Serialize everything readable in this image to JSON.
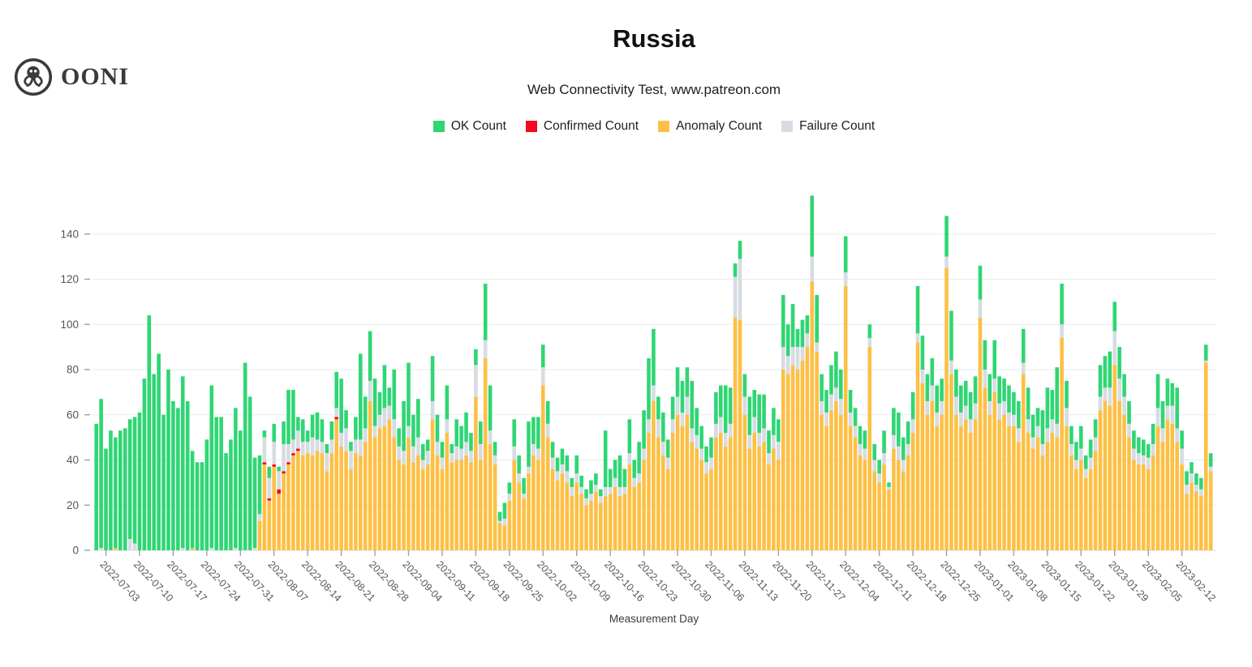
{
  "brand": {
    "logo_text": "OONI"
  },
  "title": "Russia",
  "subtitle": "Web Connectivity Test, www.patreon.com",
  "legend": {
    "items": [
      {
        "label": "OK Count",
        "color": "#2fd673"
      },
      {
        "label": "Confirmed Count",
        "color": "#f30b20"
      },
      {
        "label": "Anomaly Count",
        "color": "#fdc045"
      },
      {
        "label": "Failure Count",
        "color": "#d6dce2"
      }
    ]
  },
  "chart_data": {
    "type": "bar",
    "stacked": true,
    "title": "Russia",
    "subtitle": "Web Connectivity Test, www.patreon.com",
    "xlabel": "Measurement Day",
    "ylabel": "",
    "start_date": "2022-07-01",
    "end_date": "2023-02-18",
    "ylim": [
      0,
      160
    ],
    "y_ticks": [
      0,
      20,
      40,
      60,
      80,
      100,
      120,
      140
    ],
    "grid": true,
    "legend_position": "top",
    "x_tick_start_index": 2,
    "x_tick_step": 7,
    "x_tick_labels": [
      "2022-07-03",
      "2022-07-10",
      "2022-07-17",
      "2022-07-24",
      "2022-07-31",
      "2022-08-07",
      "2022-08-14",
      "2022-08-21",
      "2022-08-28",
      "2022-09-04",
      "2022-09-11",
      "2022-09-18",
      "2022-09-25",
      "2022-10-02",
      "2022-10-09",
      "2022-10-16",
      "2022-10-23",
      "2022-10-30",
      "2022-11-06",
      "2022-11-13",
      "2022-11-20",
      "2022-11-27",
      "2022-12-04",
      "2022-12-11",
      "2022-12-18",
      "2022-12-25",
      "2023-01-01",
      "2023-01-08",
      "2023-01-15",
      "2023-01-22",
      "2023-01-29",
      "2023-02-05",
      "2023-02-12"
    ],
    "stack_order_bottom_to_top": [
      "Anomaly Count",
      "Confirmed Count",
      "Failure Count",
      "OK Count"
    ],
    "series": [
      {
        "name": "Anomaly Count",
        "color": "#fdc045",
        "values": [
          0,
          0,
          0,
          0,
          1,
          0,
          0,
          0,
          0,
          0,
          0,
          0,
          0,
          0,
          0,
          0,
          0,
          0,
          0,
          0,
          1,
          0,
          0,
          0,
          0,
          0,
          0,
          0,
          0,
          0,
          0,
          0,
          0,
          0,
          13,
          38,
          22,
          37,
          25,
          34,
          38,
          42,
          44,
          42,
          43,
          42,
          44,
          43,
          35,
          43,
          58,
          46,
          44,
          36,
          43,
          42,
          48,
          66,
          50,
          54,
          55,
          58,
          50,
          40,
          38,
          50,
          39,
          42,
          36,
          38,
          58,
          42,
          36,
          52,
          39,
          40,
          40,
          42,
          39,
          68,
          40,
          85,
          47,
          38,
          12,
          11,
          22,
          40,
          30,
          23,
          34,
          42,
          40,
          73,
          50,
          36,
          31,
          34,
          30,
          24,
          30,
          25,
          20,
          22,
          26,
          21,
          24,
          25,
          28,
          24,
          25,
          38,
          28,
          30,
          40,
          52,
          66,
          50,
          42,
          36,
          52,
          60,
          55,
          60,
          48,
          45,
          40,
          34,
          36,
          50,
          52,
          46,
          50,
          103,
          102,
          60,
          45,
          52,
          46,
          48,
          38,
          45,
          40,
          80,
          78,
          82,
          80,
          84,
          90,
          119,
          88,
          60,
          55,
          62,
          66,
          60,
          117,
          55,
          50,
          42,
          40,
          90,
          35,
          30,
          38,
          27,
          45,
          40,
          35,
          42,
          52,
          92,
          74,
          60,
          66,
          55,
          60,
          125,
          78,
          60,
          55,
          58,
          52,
          58,
          103,
          72,
          60,
          70,
          58,
          60,
          55,
          55,
          48,
          78,
          52,
          45,
          50,
          42,
          48,
          52,
          50,
          94,
          55,
          42,
          36,
          40,
          32,
          36,
          44,
          62,
          66,
          64,
          82,
          66,
          60,
          50,
          40,
          38,
          38,
          36,
          42,
          55,
          48,
          58,
          56,
          48,
          38,
          25,
          30,
          26,
          24,
          83,
          35
        ]
      },
      {
        "name": "Confirmed Count",
        "color": "#f30b20",
        "values": [
          0,
          0,
          0,
          0,
          0,
          0,
          0,
          0,
          0,
          0,
          0,
          0,
          0,
          0,
          0,
          0,
          0,
          0,
          0,
          0,
          0,
          0,
          0,
          0,
          0,
          0,
          0,
          0,
          0,
          0,
          0,
          0,
          0,
          0,
          0,
          1,
          1,
          1,
          2,
          1,
          1,
          1,
          1,
          0,
          0,
          0,
          0,
          0,
          0,
          0,
          1,
          0,
          0,
          0,
          0,
          0,
          0,
          0,
          0,
          0,
          0,
          0,
          0,
          0,
          0,
          0,
          0,
          0,
          0,
          0,
          0,
          0,
          0,
          0,
          0,
          0,
          0,
          0,
          0,
          0,
          0,
          0,
          0,
          0,
          0,
          0,
          0,
          0,
          0,
          0,
          0,
          0,
          0,
          0,
          0,
          0,
          0,
          0,
          0,
          0,
          0,
          0,
          0,
          0,
          0,
          0,
          0,
          0,
          0,
          0,
          0,
          0,
          0,
          0,
          0,
          0,
          0,
          0,
          0,
          0,
          0,
          0,
          0,
          0,
          0,
          0,
          0,
          0,
          0,
          0,
          0,
          0,
          0,
          0,
          0,
          0,
          0,
          0,
          0,
          0,
          0,
          0,
          0,
          0,
          0,
          0,
          0,
          0,
          0,
          0,
          0,
          0,
          0,
          0,
          0,
          0,
          0,
          0,
          0,
          0,
          0,
          0,
          0,
          0,
          0,
          0,
          0,
          0,
          0,
          0,
          0,
          0,
          0,
          0,
          0,
          0,
          0,
          0,
          0,
          0,
          0,
          0,
          0,
          0,
          0,
          0,
          0,
          0,
          0,
          0,
          0,
          0,
          0,
          0,
          0,
          0,
          0,
          0,
          0,
          0,
          0,
          0,
          0,
          0,
          0,
          0,
          0,
          0,
          0,
          0,
          0,
          0,
          0,
          0,
          0,
          0,
          0,
          0,
          0,
          0,
          0,
          0,
          0,
          0,
          0,
          0,
          0,
          0,
          0,
          0,
          0,
          0,
          0
        ]
      },
      {
        "name": "Failure Count",
        "color": "#d6dce2",
        "values": [
          0,
          1,
          0,
          0,
          0,
          0,
          0,
          5,
          3,
          0,
          0,
          0,
          0,
          0,
          0,
          0,
          0,
          0,
          1,
          0,
          0,
          0,
          0,
          0,
          1,
          0,
          0,
          0,
          0,
          1,
          0,
          0,
          0,
          1,
          3,
          11,
          9,
          10,
          8,
          12,
          8,
          6,
          8,
          6,
          5,
          8,
          5,
          5,
          8,
          6,
          4,
          6,
          10,
          8,
          6,
          7,
          6,
          9,
          5,
          6,
          8,
          6,
          8,
          6,
          6,
          5,
          7,
          8,
          4,
          6,
          8,
          6,
          5,
          6,
          4,
          6,
          5,
          6,
          5,
          14,
          7,
          8,
          6,
          4,
          1,
          3,
          3,
          6,
          4,
          2,
          3,
          5,
          5,
          8,
          6,
          5,
          4,
          4,
          5,
          4,
          4,
          3,
          3,
          3,
          3,
          3,
          4,
          3,
          4,
          4,
          3,
          5,
          4,
          4,
          5,
          6,
          7,
          8,
          6,
          5,
          6,
          8,
          6,
          8,
          6,
          6,
          5,
          5,
          5,
          6,
          7,
          6,
          6,
          18,
          27,
          8,
          6,
          7,
          6,
          6,
          5,
          6,
          8,
          10,
          8,
          8,
          10,
          6,
          6,
          11,
          4,
          6,
          6,
          7,
          6,
          7,
          6,
          6,
          5,
          5,
          5,
          4,
          5,
          4,
          5,
          1,
          6,
          6,
          5,
          5,
          6,
          4,
          6,
          6,
          7,
          6,
          6,
          5,
          6,
          8,
          6,
          6,
          6,
          7,
          8,
          8,
          6,
          6,
          7,
          6,
          6,
          5,
          6,
          5,
          6,
          5,
          5,
          5,
          6,
          6,
          6,
          6,
          8,
          5,
          4,
          5,
          4,
          5,
          6,
          6,
          6,
          8,
          15,
          10,
          8,
          6,
          5,
          5,
          4,
          5,
          5,
          8,
          6,
          6,
          8,
          6,
          7,
          4,
          4,
          3,
          3,
          1,
          2
        ]
      },
      {
        "name": "OK Count",
        "color": "#2fd673",
        "values": [
          56,
          66,
          45,
          53,
          49,
          53,
          54,
          53,
          56,
          61,
          76,
          104,
          78,
          87,
          60,
          80,
          66,
          63,
          76,
          66,
          43,
          39,
          39,
          49,
          72,
          59,
          59,
          43,
          49,
          62,
          53,
          83,
          68,
          40,
          26,
          3,
          5,
          8,
          2,
          10,
          24,
          22,
          6,
          10,
          5,
          10,
          12,
          10,
          4,
          8,
          16,
          24,
          8,
          4,
          10,
          38,
          14,
          22,
          21,
          10,
          19,
          8,
          22,
          8,
          22,
          28,
          14,
          17,
          7,
          5,
          20,
          12,
          7,
          15,
          4,
          12,
          10,
          13,
          8,
          7,
          10,
          25,
          20,
          6,
          4,
          7,
          5,
          12,
          8,
          7,
          20,
          12,
          14,
          10,
          10,
          7,
          6,
          7,
          7,
          4,
          8,
          5,
          4,
          6,
          5,
          3,
          25,
          8,
          8,
          14,
          8,
          15,
          8,
          14,
          17,
          27,
          25,
          10,
          13,
          8,
          10,
          13,
          14,
          13,
          21,
          12,
          10,
          7,
          9,
          14,
          14,
          21,
          16,
          6,
          8,
          10,
          17,
          12,
          17,
          15,
          10,
          12,
          10,
          23,
          14,
          19,
          8,
          12,
          8,
          27,
          21,
          12,
          10,
          13,
          16,
          13,
          16,
          10,
          8,
          8,
          8,
          6,
          7,
          6,
          10,
          2,
          12,
          15,
          10,
          10,
          12,
          21,
          15,
          12,
          12,
          12,
          10,
          18,
          22,
          12,
          12,
          11,
          12,
          12,
          15,
          13,
          12,
          17,
          12,
          10,
          12,
          10,
          12,
          15,
          14,
          10,
          8,
          15,
          18,
          13,
          25,
          18,
          12,
          8,
          8,
          10,
          6,
          8,
          8,
          14,
          14,
          16,
          13,
          14,
          10,
          10,
          8,
          7,
          7,
          6,
          9,
          15,
          12,
          12,
          10,
          18,
          8,
          6,
          5,
          5,
          5,
          7,
          6
        ]
      }
    ],
    "axis_colors": {
      "grid": "#e9ebee",
      "tick": "#a0a0a0",
      "tick_label": "#565656",
      "axis_title": "#3b3b3b"
    }
  }
}
